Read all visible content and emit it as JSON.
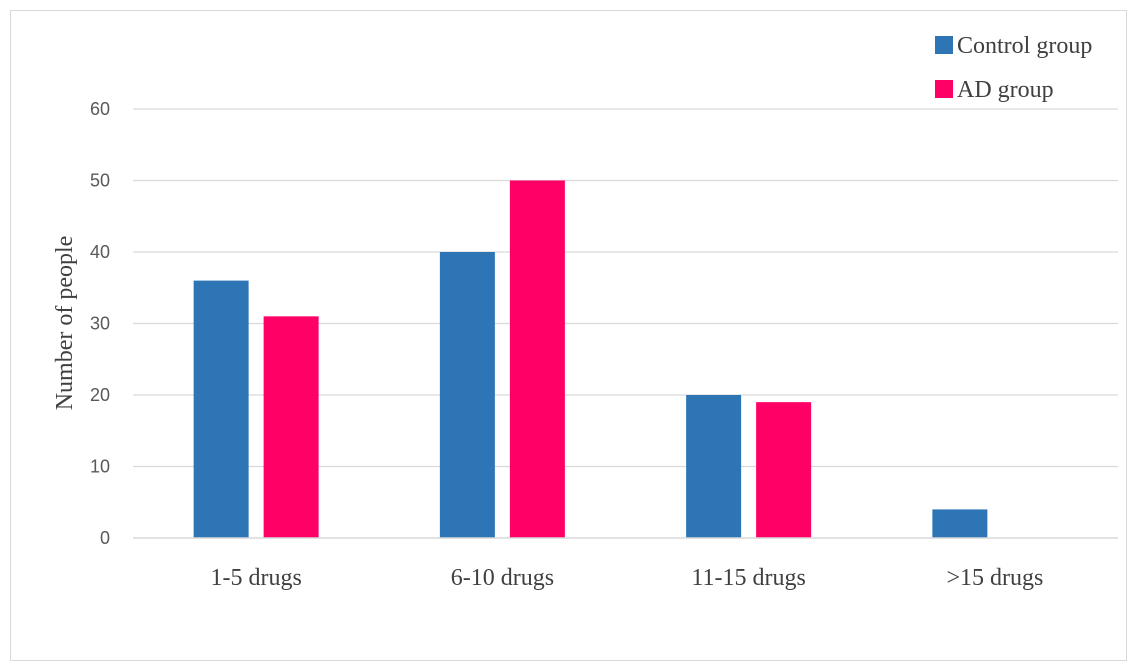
{
  "chart_data": {
    "type": "bar",
    "categories": [
      "1-5 drugs",
      "6-10 drugs",
      "11-15 drugs",
      ">15 drugs"
    ],
    "series": [
      {
        "name": "Control group",
        "values": [
          36,
          40,
          20,
          4
        ],
        "color": "#2e75b6"
      },
      {
        "name": "AD group",
        "values": [
          31,
          50,
          19,
          0
        ],
        "color": "#ff0066"
      }
    ],
    "xlabel": "",
    "ylabel": "Number of people",
    "ylim": [
      0,
      60
    ],
    "yticks": [
      0,
      10,
      20,
      30,
      40,
      50,
      60
    ],
    "grid": true,
    "legend_position": "top-right"
  }
}
